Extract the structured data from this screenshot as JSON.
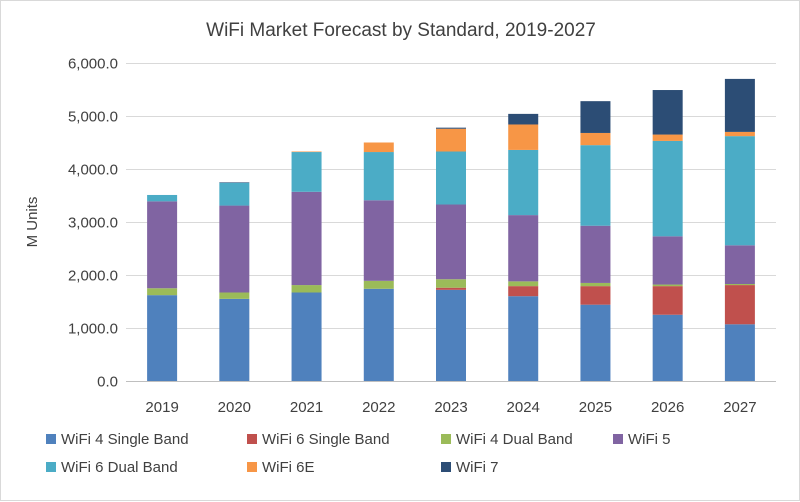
{
  "chart_data": {
    "type": "bar",
    "stacked": true,
    "title": "WiFi Market Forecast by Standard, 2019-2027",
    "xlabel": "",
    "ylabel": "M Units",
    "ylim": [
      0,
      6000
    ],
    "ytick_step": 1000,
    "yticks": [
      "0.0",
      "1,000.0",
      "2,000.0",
      "3,000.0",
      "4,000.0",
      "5,000.0",
      "6,000.0"
    ],
    "grid": true,
    "legend_position": "bottom",
    "categories": [
      "2019",
      "2020",
      "2021",
      "2022",
      "2023",
      "2024",
      "2025",
      "2026",
      "2027"
    ],
    "series": [
      {
        "name": "WiFi 4 Single Band",
        "color": "#4f81bd",
        "values": [
          1620,
          1550,
          1670,
          1740,
          1720,
          1600,
          1440,
          1250,
          1070
        ]
      },
      {
        "name": "WiFi 6 Single Band",
        "color": "#c0504d",
        "values": [
          0,
          0,
          0,
          0,
          40,
          190,
          350,
          540,
          740
        ]
      },
      {
        "name": "WiFi 4 Dual Band",
        "color": "#9bbb59",
        "values": [
          130,
          120,
          140,
          150,
          160,
          90,
          60,
          30,
          20
        ]
      },
      {
        "name": "WiFi 5",
        "color": "#8064a2",
        "values": [
          1640,
          1640,
          1760,
          1520,
          1410,
          1250,
          1080,
          910,
          730
        ]
      },
      {
        "name": "WiFi 6 Dual Band",
        "color": "#4bacc6",
        "values": [
          120,
          430,
          750,
          910,
          1000,
          1230,
          1520,
          1800,
          2060
        ]
      },
      {
        "name": "WiFi 6E",
        "color": "#f79646",
        "values": [
          0,
          0,
          10,
          180,
          430,
          480,
          230,
          120,
          80
        ]
      },
      {
        "name": "WiFi 7",
        "color": "#2c4d75",
        "values": [
          0,
          10,
          0,
          0,
          20,
          200,
          600,
          840,
          1000
        ]
      }
    ]
  }
}
